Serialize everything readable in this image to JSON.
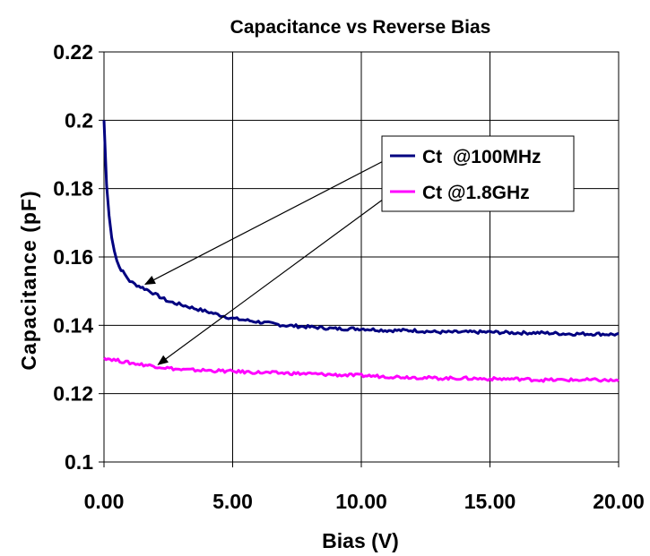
{
  "chart_data": {
    "type": "line",
    "title": "Capacitance vs Reverse Bias",
    "xlabel": "Bias (V)",
    "ylabel": "Capacitance (pF)",
    "xlim": [
      0,
      20
    ],
    "ylim": [
      0.1,
      0.22
    ],
    "x_ticks": [
      0,
      5,
      10,
      15,
      20
    ],
    "x_tick_labels": [
      "0.00",
      "5.00",
      "10.00",
      "15.00",
      "20.00"
    ],
    "y_ticks": [
      0.1,
      0.12,
      0.14,
      0.16,
      0.18,
      0.2,
      0.22
    ],
    "y_tick_labels": [
      "0.1",
      "0.12",
      "0.14",
      "0.16",
      "0.18",
      "0.2",
      "0.22"
    ],
    "grid": true,
    "legend_position": "upper-right",
    "series": [
      {
        "name": "Ct  @100MHz",
        "color": "#000080",
        "x": [
          0,
          0.1,
          0.2,
          0.3,
          0.4,
          0.5,
          0.6,
          0.8,
          1.0,
          1.2,
          1.5,
          1.8,
          2.0,
          2.5,
          3.0,
          3.5,
          4.0,
          4.5,
          5.0,
          5.5,
          6.0,
          7.0,
          8.0,
          9.0,
          10.0,
          11.0,
          12.0,
          13.0,
          14.0,
          15.0,
          16.0,
          17.0,
          18.0,
          19.0,
          20.0
        ],
        "values": [
          0.2,
          0.181,
          0.172,
          0.166,
          0.162,
          0.159,
          0.157,
          0.155,
          0.153,
          0.152,
          0.151,
          0.15,
          0.149,
          0.147,
          0.146,
          0.145,
          0.144,
          0.143,
          0.142,
          0.1415,
          0.141,
          0.14,
          0.1395,
          0.139,
          0.139,
          0.1385,
          0.1385,
          0.138,
          0.138,
          0.138,
          0.1378,
          0.1378,
          0.1375,
          0.1375,
          0.1373
        ]
      },
      {
        "name": "Ct @1.8GHz",
        "color": "#ff00ff",
        "x": [
          0,
          1.0,
          2.0,
          3.0,
          4.0,
          5.0,
          6.0,
          7.0,
          8.0,
          9.0,
          10.0,
          11.0,
          12.0,
          13.0,
          14.0,
          15.0,
          16.0,
          17.0,
          18.0,
          19.0,
          20.0
        ],
        "values": [
          0.1305,
          0.129,
          0.128,
          0.127,
          0.1268,
          0.1265,
          0.1262,
          0.126,
          0.1258,
          0.1255,
          0.1253,
          0.125,
          0.1248,
          0.1245,
          0.1245,
          0.1243,
          0.1243,
          0.124,
          0.124,
          0.124,
          0.1238
        ]
      }
    ],
    "annotations": [
      {
        "type": "arrow",
        "from_legend_series": 0,
        "to": [
          1.6,
          0.152
        ]
      },
      {
        "type": "arrow",
        "from_legend_series": 1,
        "to": [
          2.1,
          0.1285
        ]
      }
    ]
  }
}
